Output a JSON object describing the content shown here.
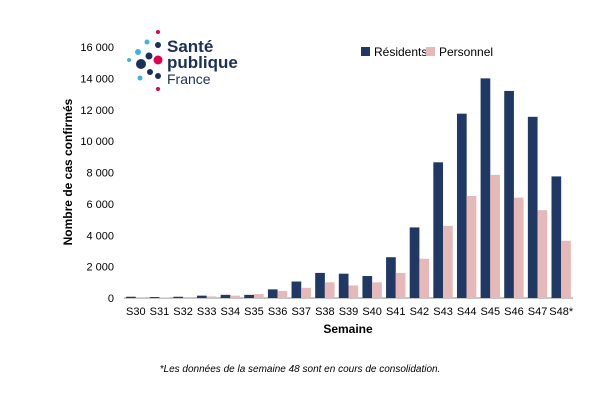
{
  "logo": {
    "line1": "Santé",
    "line2": "publique",
    "line3": "France",
    "colors": {
      "navy": "#1a2f5a",
      "cyan": "#3bb4e5",
      "magenta": "#e0004d"
    }
  },
  "footnote": "*Les données de la semaine 48  sont en cours de consolidation.",
  "chart_data": {
    "type": "bar",
    "title": "",
    "xlabel": "Semaine",
    "ylabel": "Nombre de cas confirmés",
    "ylim": [
      0,
      16000
    ],
    "yticks": [
      0,
      2000,
      4000,
      6000,
      8000,
      10000,
      12000,
      14000,
      16000
    ],
    "ytick_labels": [
      "0",
      "2 000",
      "4 000",
      "6 000",
      "8 000",
      "10 000",
      "12 000",
      "14 000",
      "16 000"
    ],
    "legend_position": "top-right",
    "categories": [
      "S30",
      "S31",
      "S32",
      "S33",
      "S34",
      "S35",
      "S36",
      "S37",
      "S38",
      "S39",
      "S40",
      "S41",
      "S42",
      "S43",
      "S44",
      "S45",
      "S46",
      "S47",
      "S48*"
    ],
    "series": [
      {
        "name": "Résidents",
        "color": "#1f3864",
        "values": [
          80,
          60,
          80,
          150,
          200,
          200,
          550,
          1050,
          1600,
          1550,
          1400,
          2600,
          4500,
          8650,
          11750,
          14000,
          13200,
          11550,
          7750
        ]
      },
      {
        "name": "Personnel",
        "color": "#e6b9b8",
        "values": [
          50,
          40,
          60,
          100,
          150,
          250,
          450,
          650,
          1000,
          800,
          1000,
          1600,
          2500,
          4600,
          6500,
          7850,
          6400,
          5600,
          3650
        ]
      }
    ]
  }
}
